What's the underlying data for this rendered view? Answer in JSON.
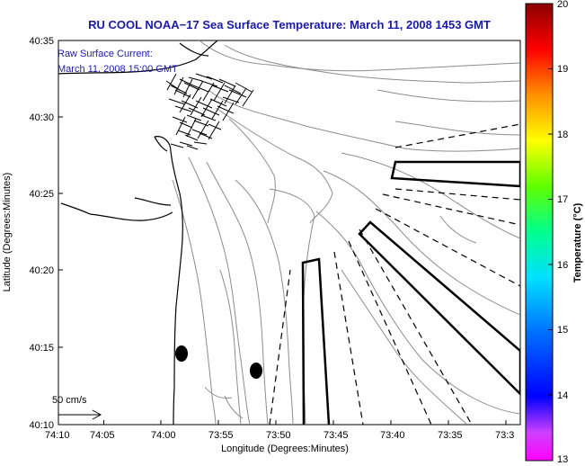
{
  "title": "RU COOL  NOAA−17  Sea Surface Temperature:  March 11, 2008 1453 GMT",
  "legend": {
    "line1": "Raw Surface Current:",
    "line2": "March 11, 2008 15:00 GMT",
    "scale_label": "50 cm/s"
  },
  "axes": {
    "xlabel": "Longitude (Degrees:Minutes)",
    "ylabel": "Latitude (Degrees:Minutes)",
    "x_ticks": [
      "74:10",
      "74:05",
      "74:00",
      "73:55",
      "73:50",
      "73:45",
      "73:40",
      "73:35",
      "73:3"
    ],
    "y_ticks": [
      "40:35",
      "40:30",
      "40:25",
      "40:20",
      "40:15",
      "40:10"
    ]
  },
  "colorbar": {
    "label": "Temperature (°C)",
    "ticks": [
      "20",
      "19",
      "18",
      "17",
      "16",
      "15",
      "14",
      "13"
    ],
    "min": 13,
    "max": 20
  },
  "colors": {
    "title": "#1a1aa8",
    "contour": "#8c8c8c",
    "coast": "#000000"
  }
}
